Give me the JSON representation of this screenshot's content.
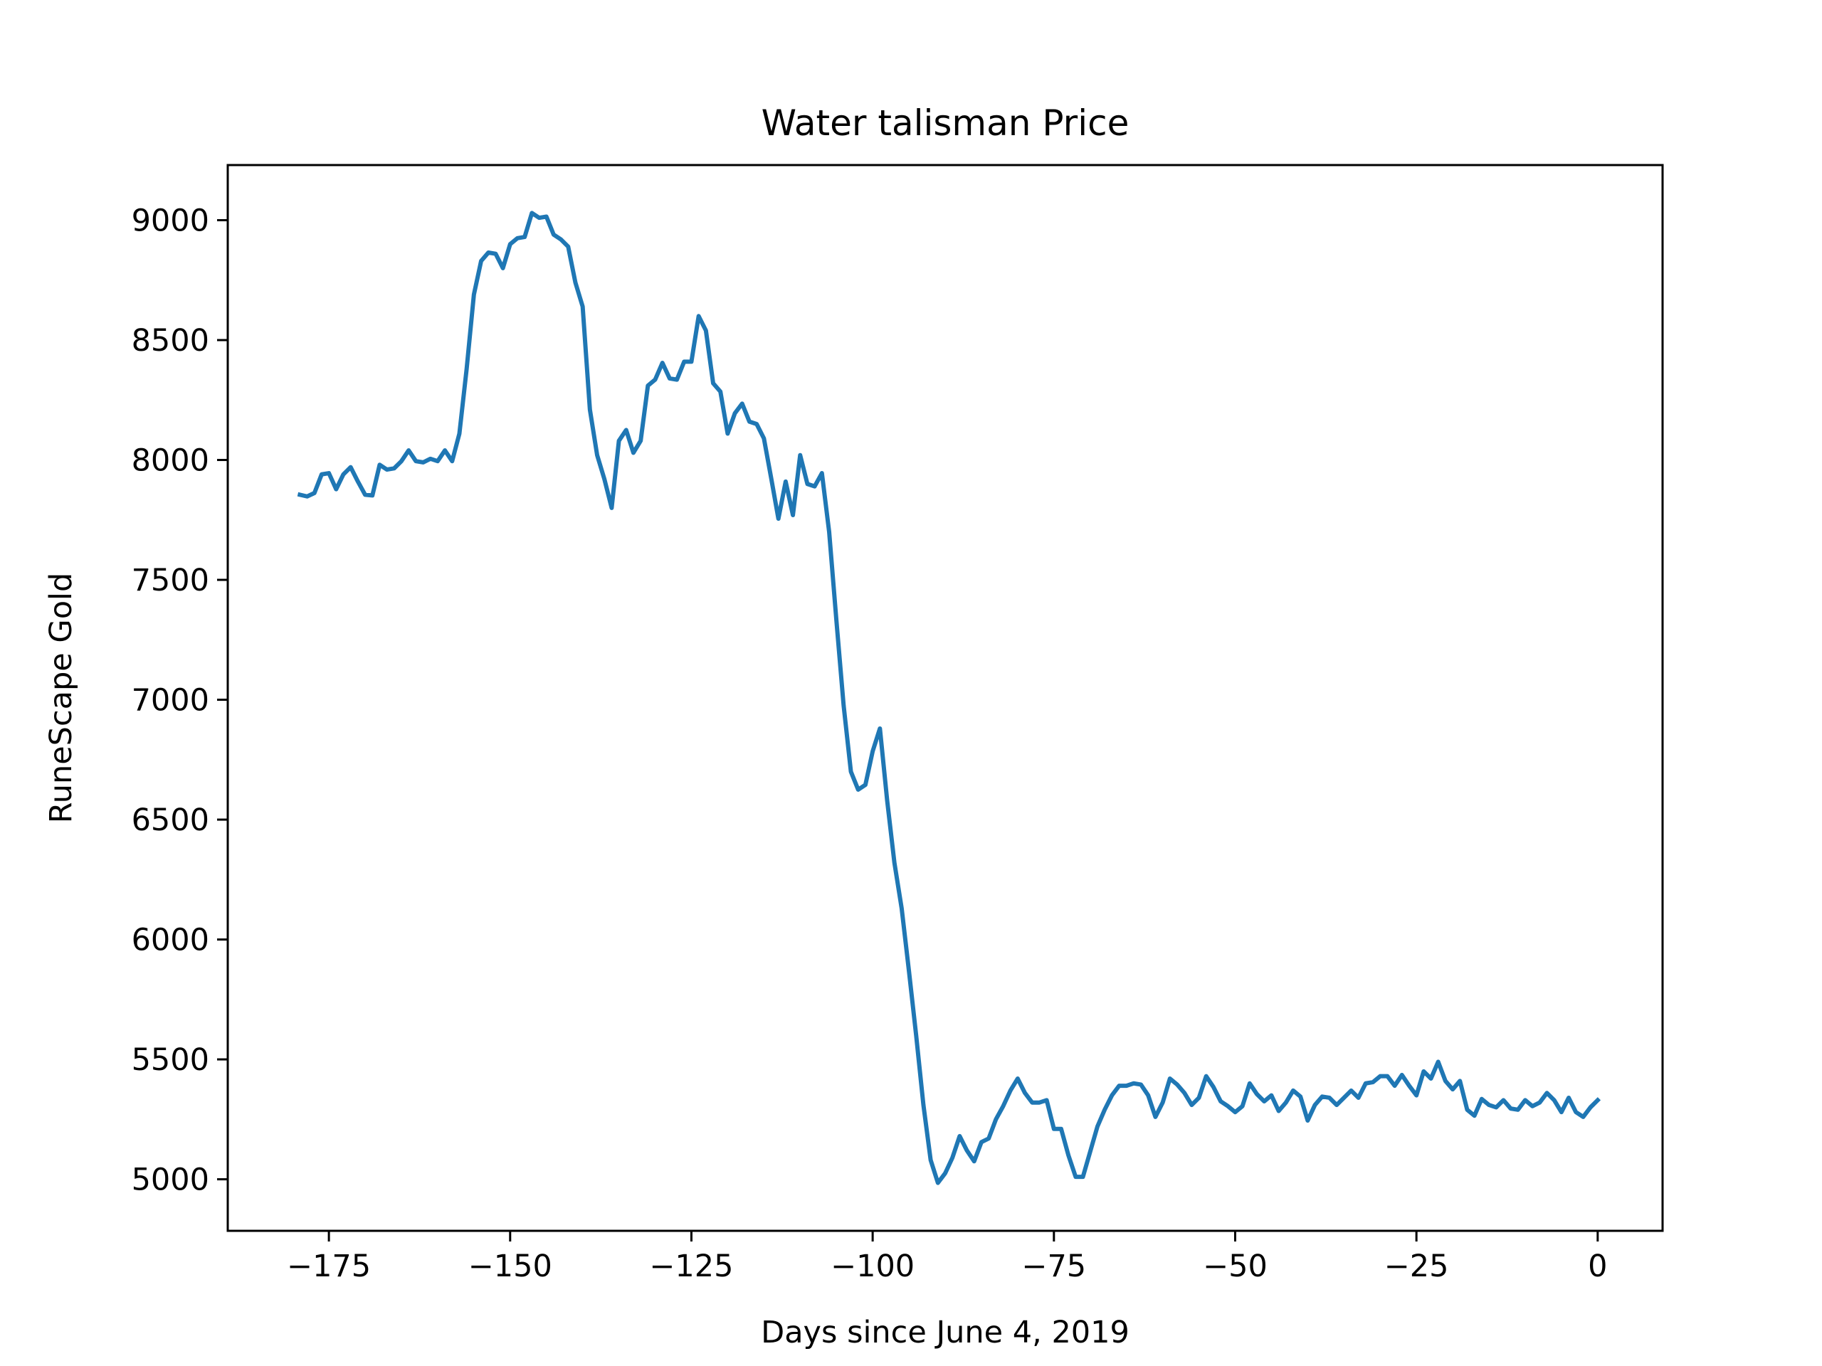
{
  "chart_data": {
    "type": "line",
    "title": "Water talisman Price",
    "xlabel": "Days since June 4, 2019",
    "ylabel": "RuneScape Gold",
    "xlim": [
      -188.95,
      8.95
    ],
    "ylim": [
      4785,
      9230
    ],
    "xticks": [
      -175,
      -150,
      -125,
      -100,
      -75,
      -50,
      -25,
      0
    ],
    "xtick_labels": [
      "−175",
      "−150",
      "−125",
      "−100",
      "−75",
      "−50",
      "−25",
      "0"
    ],
    "yticks": [
      5000,
      5500,
      6000,
      6500,
      7000,
      7500,
      8000,
      8500,
      9000
    ],
    "ytick_labels": [
      "5000",
      "5500",
      "6000",
      "6500",
      "7000",
      "7500",
      "8000",
      "8500",
      "9000"
    ],
    "grid": false,
    "series": [
      {
        "color": "#1f77b4",
        "x": [
          -179,
          -178,
          -177,
          -176,
          -175,
          -174,
          -173,
          -172,
          -171,
          -170,
          -169,
          -168,
          -167,
          -166,
          -165,
          -164,
          -163,
          -162,
          -161,
          -160,
          -159,
          -158,
          -157,
          -156,
          -155,
          -154,
          -153,
          -152,
          -151,
          -150,
          -149,
          -148,
          -147,
          -146,
          -145,
          -144,
          -143,
          -142,
          -141,
          -140,
          -139,
          -138,
          -137,
          -136,
          -135,
          -134,
          -133,
          -132,
          -131,
          -130,
          -129,
          -128,
          -127,
          -126,
          -125,
          -124,
          -123,
          -122,
          -121,
          -120,
          -119,
          -118,
          -117,
          -116,
          -115,
          -114,
          -113,
          -112,
          -111,
          -110,
          -109,
          -108,
          -107,
          -106,
          -105,
          -104,
          -103,
          -102,
          -101,
          -100,
          -99,
          -98,
          -97,
          -96,
          -95,
          -94,
          -93,
          -92,
          -91,
          -90,
          -89,
          -88,
          -87,
          -86,
          -85,
          -84,
          -83,
          -82,
          -81,
          -80,
          -79,
          -78,
          -77,
          -76,
          -75,
          -74,
          -73,
          -72,
          -71,
          -70,
          -69,
          -68,
          -67,
          -66,
          -65,
          -64,
          -63,
          -62,
          -61,
          -60,
          -59,
          -58,
          -57,
          -56,
          -55,
          -54,
          -53,
          -52,
          -51,
          -50,
          -49,
          -48,
          -47,
          -46,
          -45,
          -44,
          -43,
          -42,
          -41,
          -40,
          -39,
          -38,
          -37,
          -36,
          -35,
          -34,
          -33,
          -32,
          -31,
          -30,
          -29,
          -28,
          -27,
          -26,
          -25,
          -24,
          -23,
          -22,
          -21,
          -20,
          -19,
          -18,
          -17,
          -16,
          -15,
          -14,
          -13,
          -12,
          -11,
          -10,
          -9,
          -8,
          -7,
          -6,
          -5,
          -4,
          -3,
          -2,
          -1,
          0
        ],
        "y": [
          7855,
          7848,
          7862,
          7940,
          7945,
          7878,
          7940,
          7970,
          7910,
          7855,
          7852,
          7980,
          7960,
          7965,
          7995,
          8040,
          7995,
          7990,
          8005,
          7995,
          8040,
          7995,
          8110,
          8380,
          8690,
          8830,
          8865,
          8860,
          8800,
          8900,
          8925,
          8930,
          9030,
          9010,
          9015,
          8940,
          8920,
          8890,
          8740,
          8640,
          8210,
          8020,
          7920,
          7800,
          8080,
          8125,
          8030,
          8080,
          8310,
          8335,
          8405,
          8340,
          8335,
          8410,
          8410,
          8600,
          8540,
          8320,
          8285,
          8110,
          8195,
          8235,
          8160,
          8150,
          8090,
          7925,
          7755,
          7910,
          7770,
          8020,
          7900,
          7890,
          7945,
          7700,
          7330,
          6975,
          6700,
          6625,
          6645,
          6785,
          6880,
          6580,
          6320,
          6130,
          5870,
          5600,
          5310,
          5080,
          4985,
          5025,
          5090,
          5180,
          5120,
          5075,
          5155,
          5170,
          5250,
          5305,
          5370,
          5420,
          5360,
          5320,
          5320,
          5330,
          5210,
          5210,
          5100,
          5010,
          5010,
          5115,
          5220,
          5290,
          5350,
          5390,
          5390,
          5400,
          5395,
          5350,
          5260,
          5320,
          5420,
          5395,
          5360,
          5310,
          5340,
          5430,
          5385,
          5325,
          5305,
          5280,
          5305,
          5400,
          5355,
          5325,
          5350,
          5285,
          5320,
          5370,
          5345,
          5245,
          5310,
          5345,
          5340,
          5310,
          5340,
          5370,
          5340,
          5400,
          5405,
          5430,
          5430,
          5390,
          5435,
          5390,
          5350,
          5450,
          5420,
          5490,
          5410,
          5375,
          5410,
          5290,
          5265,
          5335,
          5310,
          5300,
          5330,
          5295,
          5290,
          5330,
          5305,
          5320,
          5360,
          5330,
          5280,
          5340,
          5280,
          5260,
          5300,
          5330
        ]
      }
    ]
  }
}
